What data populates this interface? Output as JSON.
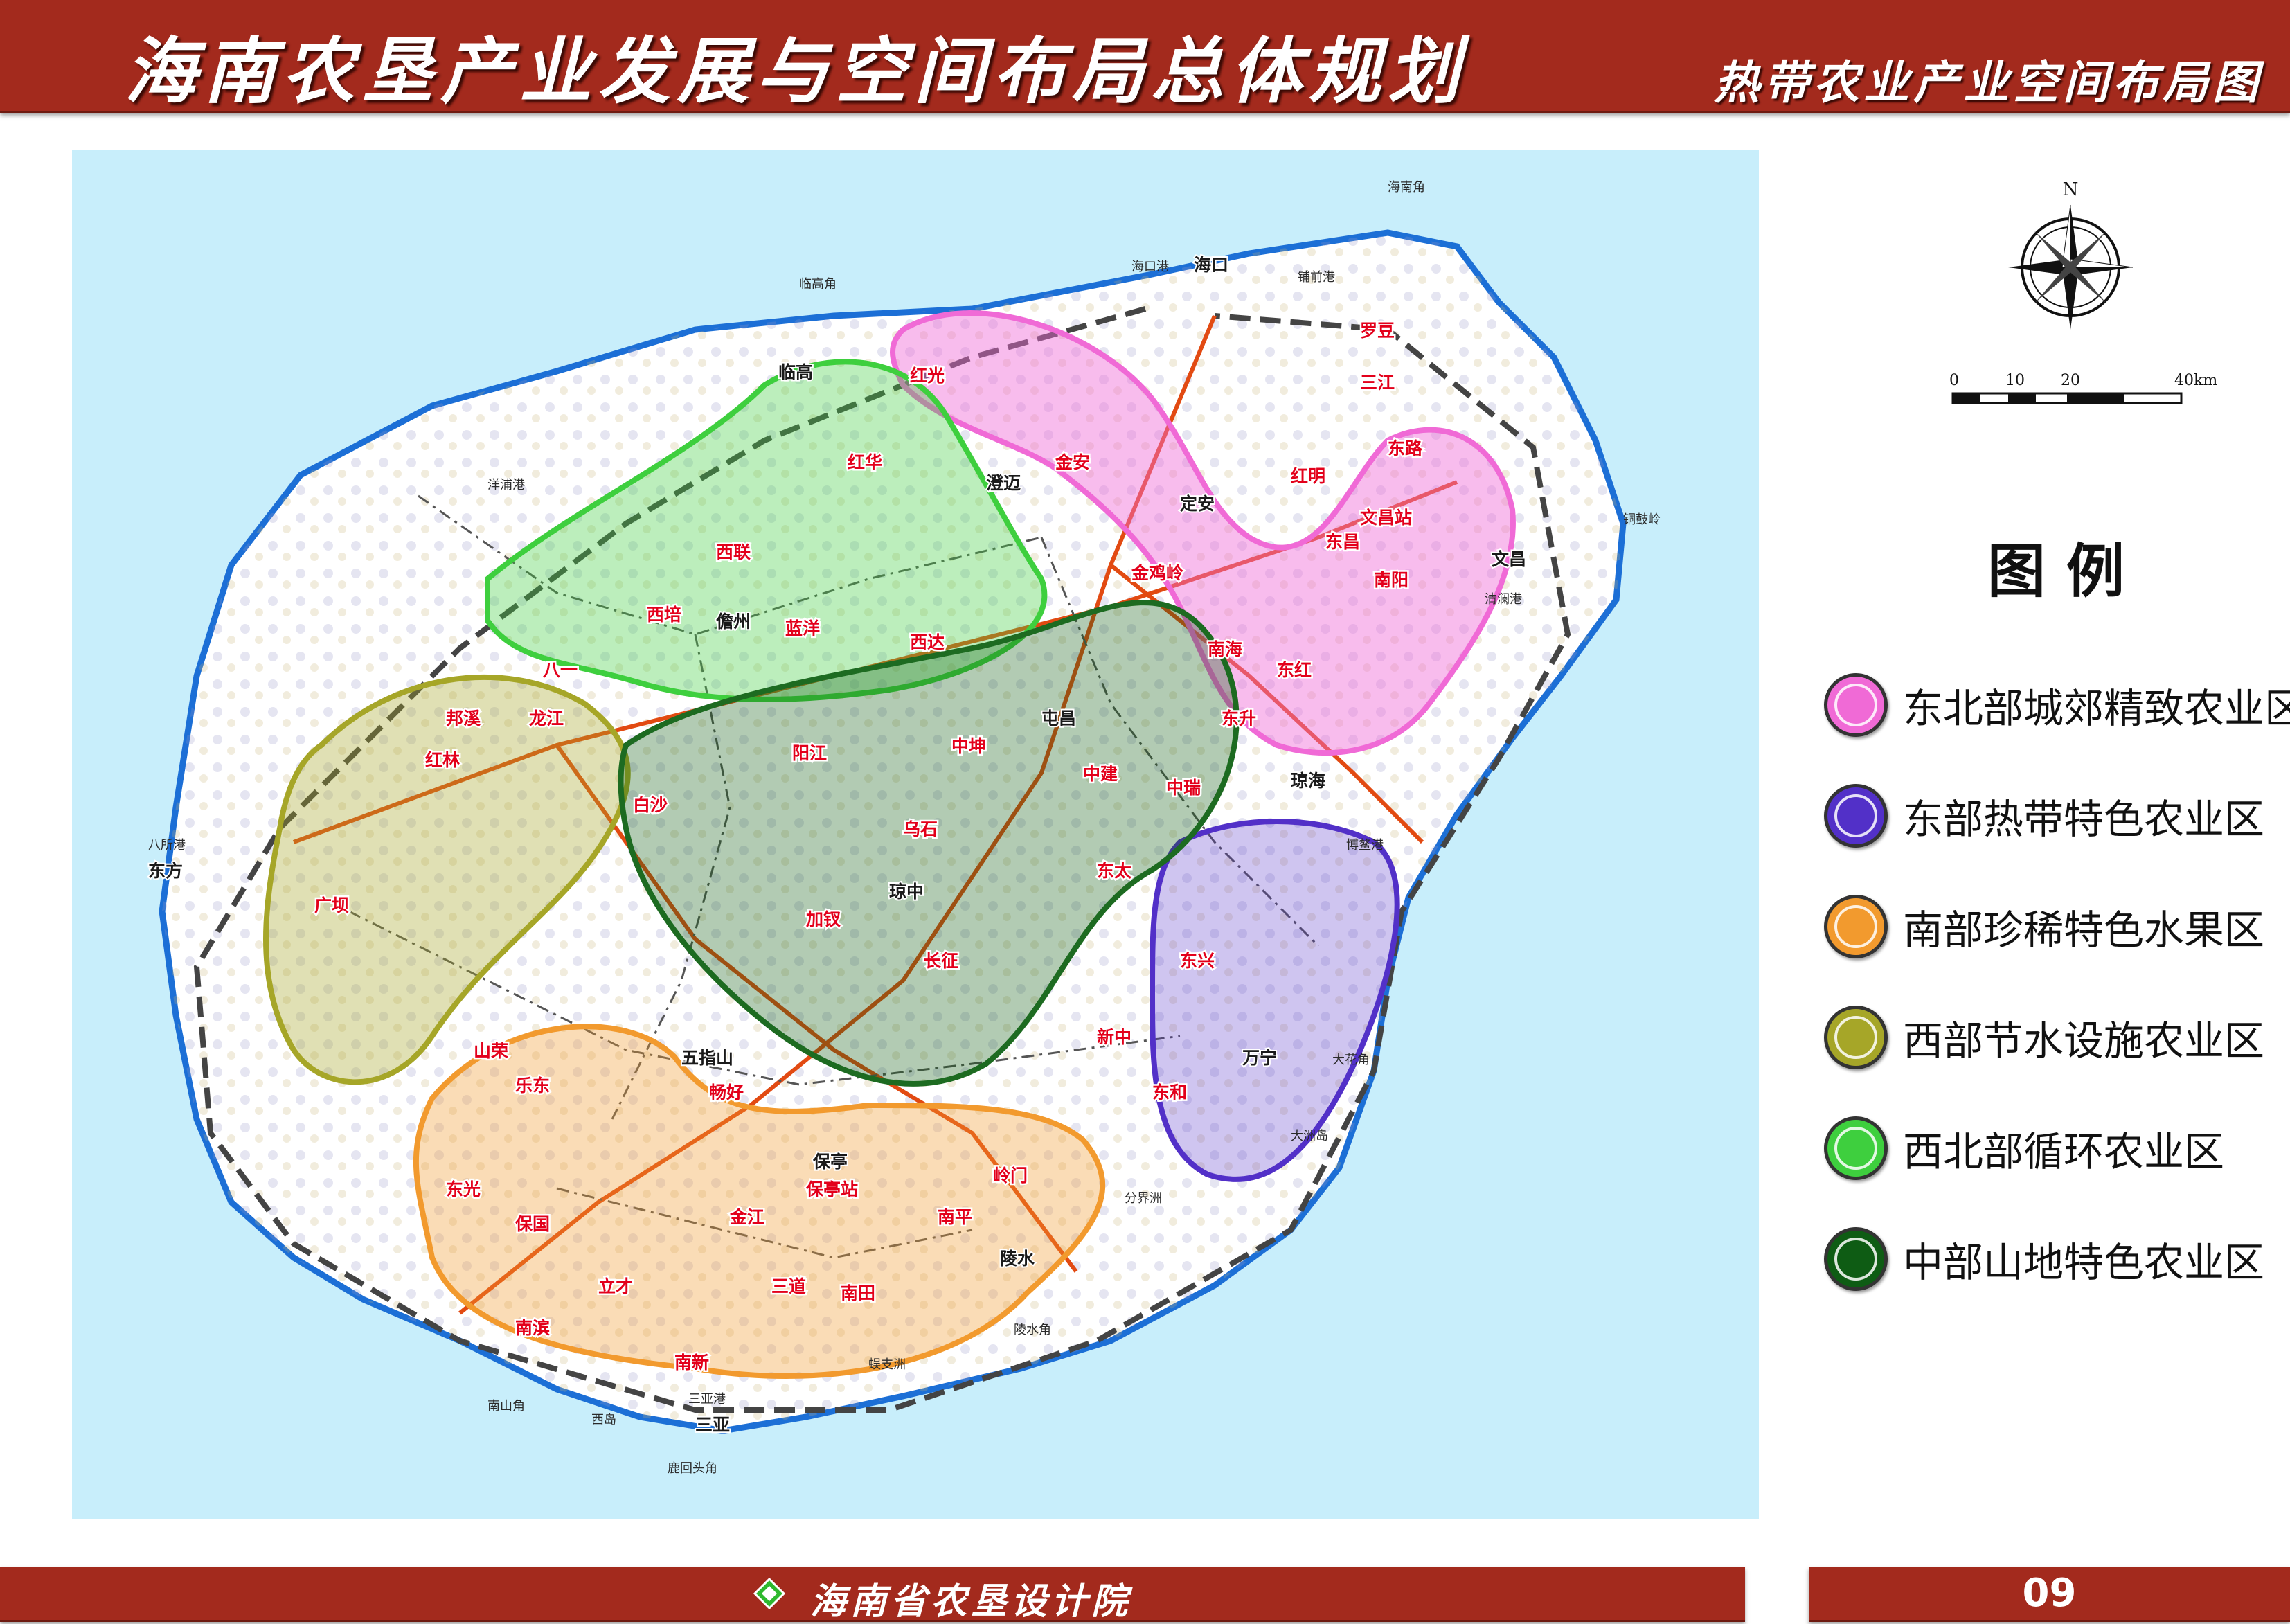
{
  "header": {
    "title": "海南农垦产业发展与空间布局总体规划",
    "subtitle": "热带农业产业空间布局图"
  },
  "compass": {
    "north_label": "N"
  },
  "scale_bar": {
    "labels": [
      "0",
      "10",
      "20",
      "40km"
    ]
  },
  "legend": {
    "title": "图例",
    "items": [
      {
        "label": "东北部城郊精致农业区",
        "color": "#f06ad6"
      },
      {
        "label": "东部热带特色农业区",
        "color": "#5230c8"
      },
      {
        "label": "南部珍稀特色水果区",
        "color": "#f29a2e"
      },
      {
        "label": "西部节水设施农业区",
        "color": "#a6a628"
      },
      {
        "label": "西北部循环农业区",
        "color": "#3ecf3e"
      },
      {
        "label": "中部山地特色农业区",
        "color": "#0e5c14"
      }
    ]
  },
  "map": {
    "zones": [
      {
        "name": "东北部城郊精致农业区",
        "color": "#f06ad6"
      },
      {
        "name": "东部热带特色农业区",
        "color": "#5230c8"
      },
      {
        "name": "南部珍稀特色水果区",
        "color": "#f29a2e"
      },
      {
        "name": "西部节水设施农业区",
        "color": "#a6a628"
      },
      {
        "name": "西北部循环农业区",
        "color": "#3ecf3e"
      },
      {
        "name": "中部山地特色农业区",
        "color": "#0e5c14"
      }
    ],
    "farm_labels": [
      "红光",
      "金安",
      "罗豆",
      "三江",
      "红明",
      "东路",
      "文昌站",
      "东昌",
      "南阳",
      "金鸡岭",
      "南海",
      "东红",
      "东升",
      "红华",
      "西联",
      "西培",
      "蓝洋",
      "西达",
      "八一",
      "邦溪",
      "龙江",
      "红林",
      "广坝",
      "白沙",
      "阳江",
      "中坤",
      "中建",
      "中瑞",
      "乌石",
      "加钗",
      "长征",
      "东太",
      "东兴",
      "新中",
      "东和",
      "山荣",
      "乐东",
      "畅好",
      "保亭站",
      "金江",
      "南平",
      "岭门",
      "东光",
      "保国",
      "立才",
      "三道",
      "南田",
      "南滨",
      "南新"
    ],
    "coastal_labels": [
      "海南角",
      "海口港",
      "海口",
      "铺前港",
      "临高角",
      "临高",
      "洋浦港",
      "澄迈",
      "定安",
      "清澜港",
      "铜鼓岭",
      "文昌",
      "琼海",
      "博鳌港",
      "万宁",
      "大花角",
      "大洲岛",
      "分界洲",
      "陵水",
      "陵水角",
      "蜈支洲",
      "三亚港",
      "三亚",
      "鹿回头角",
      "西岛",
      "南山角",
      "八所港",
      "东方",
      "五指山",
      "保亭",
      "儋州",
      "屯昌",
      "琼中"
    ]
  },
  "footer": {
    "institute": "海南省农垦设计院",
    "page_number": "09"
  }
}
